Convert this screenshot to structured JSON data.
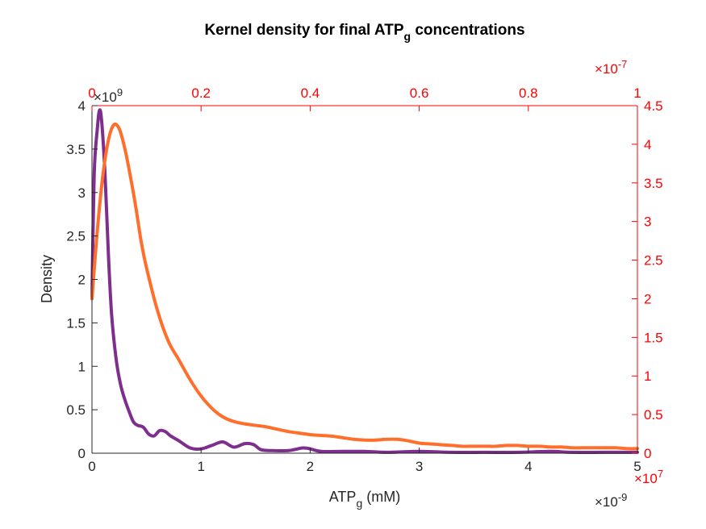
{
  "chart_data": {
    "type": "line",
    "title": {
      "prefix": "Kernel density for final ATP",
      "subscript": "g",
      "suffix": " concentrations"
    },
    "xlabel": {
      "base": "ATP",
      "subscript": "g",
      "suffix": " (mM)"
    },
    "ylabel": "Density",
    "grid": false,
    "colors": {
      "left_axis": "#262626",
      "right_axis": "#ff0000",
      "top_axis": "#ff0000",
      "series_purple": "#7e2f8e",
      "series_orange": "#ff6f2b"
    },
    "axes": {
      "bottom": {
        "range": [
          0,
          5
        ],
        "ticks": [
          0,
          1,
          2,
          3,
          4,
          5
        ],
        "tick_labels": [
          "0",
          "1",
          "2",
          "3",
          "4",
          "5"
        ],
        "multiplier": {
          "base": "×10",
          "exp": "-9"
        }
      },
      "left": {
        "range": [
          0,
          4
        ],
        "ticks": [
          0,
          0.5,
          1,
          1.5,
          2,
          2.5,
          3,
          3.5,
          4
        ],
        "tick_labels": [
          "0",
          "0.5",
          "1",
          "1.5",
          "2",
          "2.5",
          "3",
          "3.5",
          "4"
        ],
        "multiplier": {
          "base": "×10",
          "exp": "9"
        }
      },
      "top": {
        "range": [
          0,
          1
        ],
        "ticks": [
          0,
          0.2,
          0.4,
          0.6,
          0.8,
          1
        ],
        "tick_labels": [
          "0",
          "0.2",
          "0.4",
          "0.6",
          "0.8",
          "1"
        ],
        "multiplier": {
          "base": "×10",
          "exp": "-7"
        }
      },
      "right": {
        "range": [
          0,
          4.5
        ],
        "ticks": [
          0,
          0.5,
          1,
          1.5,
          2,
          2.5,
          3,
          3.5,
          4,
          4.5
        ],
        "tick_labels": [
          "0",
          "0.5",
          "1",
          "1.5",
          "2",
          "2.5",
          "3",
          "3.5",
          "4",
          "4.5"
        ],
        "multiplier": {
          "base": "×10",
          "exp": "7"
        }
      }
    },
    "series": [
      {
        "axes": "bottom-left",
        "color": "#7e2f8e",
        "x": [
          0,
          0.02,
          0.05,
          0.07,
          0.09,
          0.12,
          0.15,
          0.18,
          0.22,
          0.26,
          0.3,
          0.34,
          0.38,
          0.42,
          0.47,
          0.52,
          0.57,
          0.62,
          0.67,
          0.72,
          0.8,
          0.9,
          1.0,
          1.1,
          1.2,
          1.3,
          1.4,
          1.48,
          1.55,
          1.65,
          1.8,
          1.93,
          2.0,
          2.1,
          2.3,
          2.5,
          2.7,
          3.0,
          3.3,
          3.6,
          3.9,
          4.2,
          4.4,
          4.7,
          5.0
        ],
        "y": [
          1.8,
          3.2,
          3.75,
          3.95,
          3.8,
          3.2,
          2.3,
          1.6,
          1.1,
          0.8,
          0.62,
          0.48,
          0.36,
          0.32,
          0.3,
          0.22,
          0.2,
          0.26,
          0.25,
          0.2,
          0.14,
          0.06,
          0.05,
          0.09,
          0.13,
          0.07,
          0.11,
          0.1,
          0.04,
          0.03,
          0.03,
          0.06,
          0.05,
          0.02,
          0.02,
          0.02,
          0.01,
          0.02,
          0.01,
          0.01,
          0.01,
          0.02,
          0.01,
          0.01,
          0.01
        ]
      },
      {
        "axes": "top-right",
        "color": "#ff6f2b",
        "x": [
          0,
          0.01,
          0.02,
          0.03,
          0.04,
          0.05,
          0.06,
          0.07,
          0.08,
          0.09,
          0.1,
          0.12,
          0.14,
          0.16,
          0.18,
          0.2,
          0.22,
          0.24,
          0.26,
          0.28,
          0.3,
          0.32,
          0.34,
          0.36,
          0.38,
          0.4,
          0.42,
          0.44,
          0.46,
          0.48,
          0.5,
          0.52,
          0.54,
          0.56,
          0.58,
          0.6,
          0.62,
          0.64,
          0.66,
          0.68,
          0.7,
          0.72,
          0.74,
          0.76,
          0.78,
          0.8,
          0.82,
          0.84,
          0.86,
          0.88,
          0.9,
          0.92,
          0.94,
          0.96,
          0.98,
          1.0
        ],
        "y": [
          2.0,
          2.9,
          3.6,
          4.05,
          4.25,
          4.2,
          3.95,
          3.6,
          3.2,
          2.75,
          2.4,
          1.85,
          1.45,
          1.2,
          0.95,
          0.74,
          0.58,
          0.47,
          0.41,
          0.38,
          0.36,
          0.34,
          0.31,
          0.28,
          0.26,
          0.24,
          0.23,
          0.22,
          0.2,
          0.18,
          0.17,
          0.17,
          0.18,
          0.18,
          0.16,
          0.13,
          0.12,
          0.11,
          0.1,
          0.09,
          0.09,
          0.09,
          0.09,
          0.1,
          0.1,
          0.09,
          0.09,
          0.08,
          0.08,
          0.07,
          0.07,
          0.07,
          0.07,
          0.07,
          0.06,
          0.06
        ]
      }
    ]
  }
}
